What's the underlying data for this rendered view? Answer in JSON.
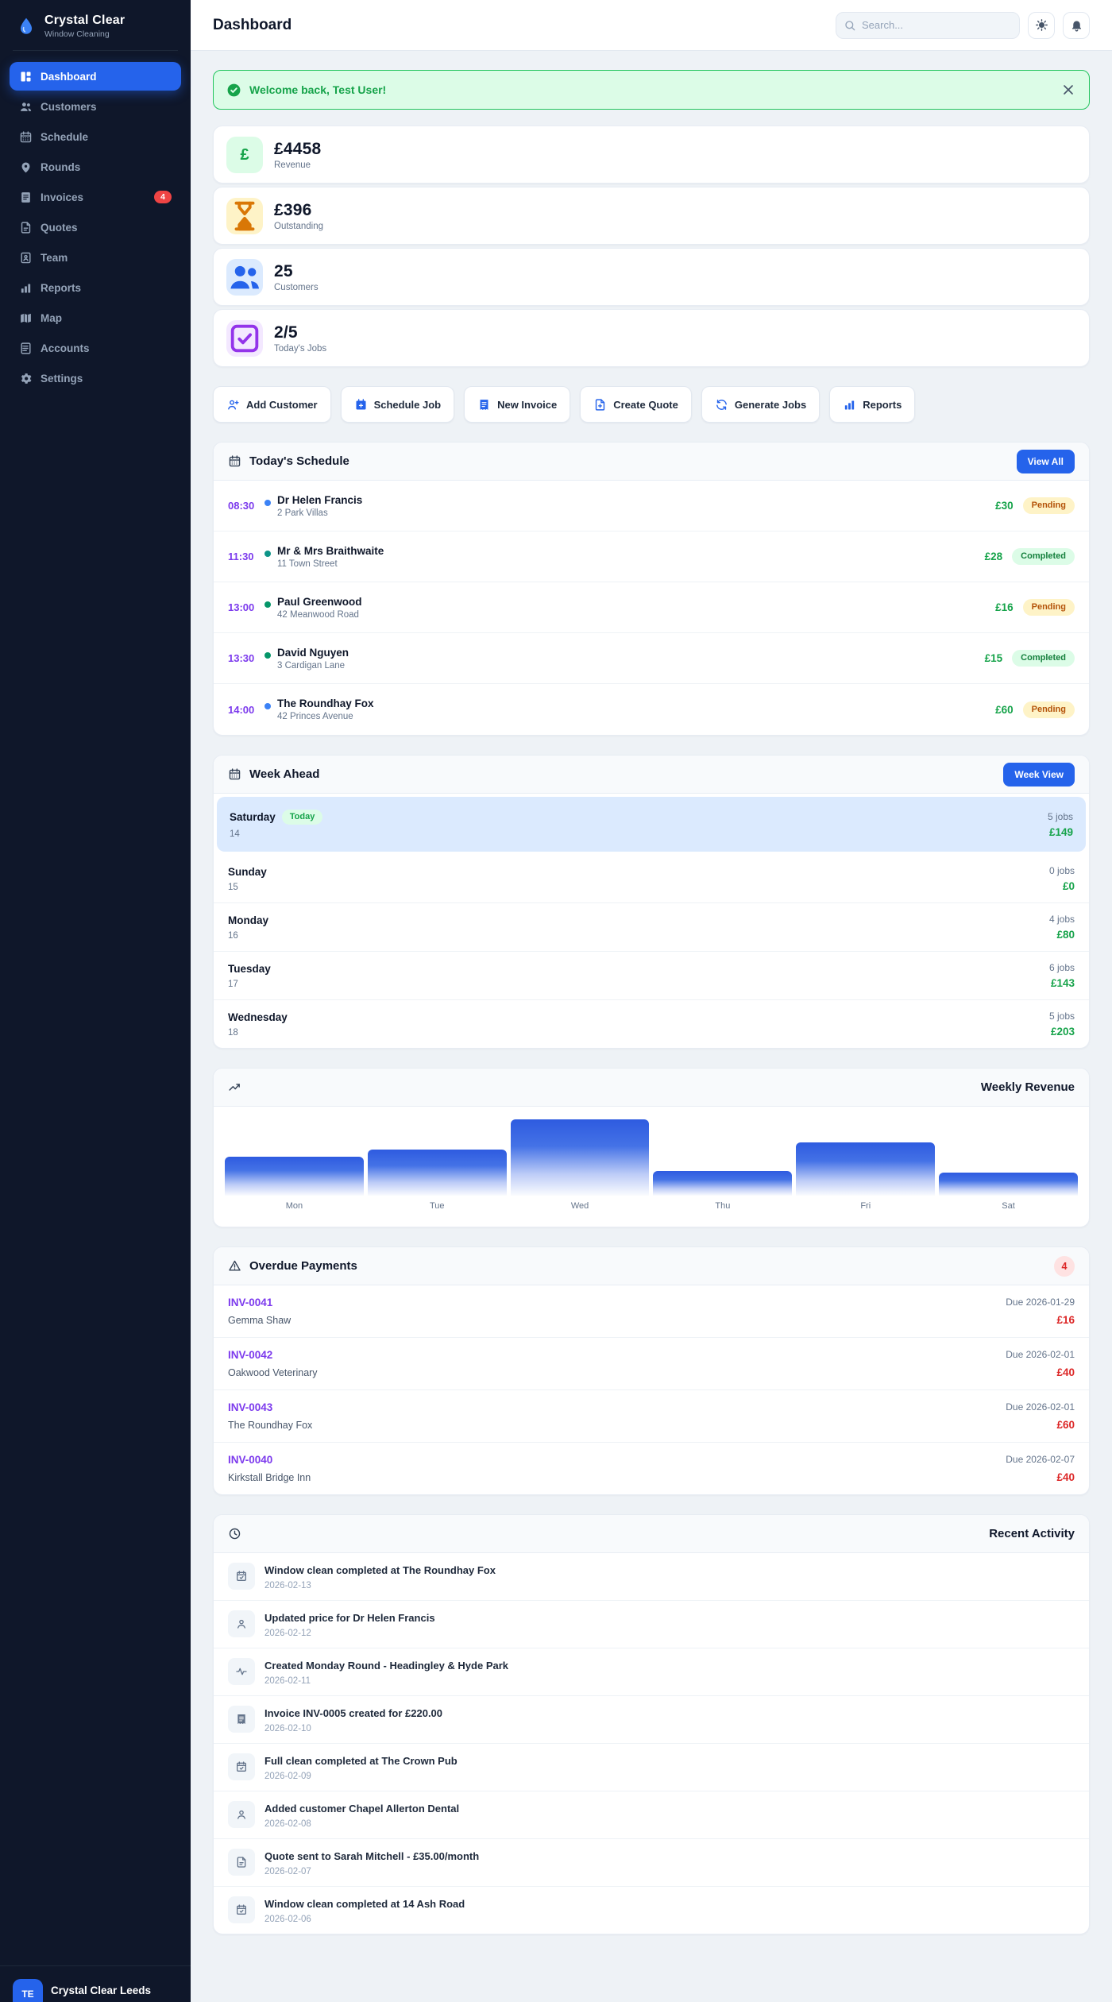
{
  "app": {
    "name": "Crystal Clear",
    "subtitle": "Window Cleaning",
    "footer_org": "Crystal Clear Leeds",
    "footer_avatar_initials": "TE"
  },
  "colors": {
    "accent_blue": "#2563eb",
    "sidebar_bg": "#0f172a",
    "page_bg": "#eef2f6",
    "success_green": "#16a34a",
    "warning_amber": "#d97706",
    "purple": "#7c3aed",
    "danger_red": "#dc2626"
  },
  "header": {
    "title": "Dashboard",
    "search_placeholder": "Search..."
  },
  "alert": {
    "message": "Welcome back, Test User!"
  },
  "sidebar": {
    "items": [
      {
        "label": "Dashboard",
        "icon": "dashboard",
        "state": "active"
      },
      {
        "label": "Customers",
        "icon": "users"
      },
      {
        "label": "Schedule",
        "icon": "calendar"
      },
      {
        "label": "Rounds",
        "icon": "pin"
      },
      {
        "label": "Invoices",
        "icon": "invoice",
        "badge": "4"
      },
      {
        "label": "Quotes",
        "icon": "quote"
      },
      {
        "label": "Team",
        "icon": "id-card"
      },
      {
        "label": "Reports",
        "icon": "bar-chart"
      },
      {
        "label": "Map",
        "icon": "map"
      },
      {
        "label": "Accounts",
        "icon": "accounts"
      },
      {
        "label": "Settings",
        "icon": "gear"
      }
    ]
  },
  "stats": [
    {
      "value": "£4458",
      "label": "Revenue",
      "icon": "pound",
      "theme": "green"
    },
    {
      "value": "£396",
      "label": "Outstanding",
      "icon": "hourglass",
      "theme": "amber"
    },
    {
      "value": "25",
      "label": "Customers",
      "icon": "users",
      "theme": "blue"
    },
    {
      "value": "2/5",
      "label": "Today's Jobs",
      "icon": "check-square",
      "theme": "purple"
    }
  ],
  "quick_actions": [
    {
      "label": "Add Customer",
      "icon": "user-plus"
    },
    {
      "label": "Schedule Job",
      "icon": "calendar-plus"
    },
    {
      "label": "New Invoice",
      "icon": "receipt"
    },
    {
      "label": "Create Quote",
      "icon": "file-plus"
    },
    {
      "label": "Generate Jobs",
      "icon": "refresh"
    },
    {
      "label": "Reports",
      "icon": "bar-chart"
    }
  ],
  "todays_schedule": {
    "title": "Today's Schedule",
    "view_all_label": "View All",
    "jobs": [
      {
        "time": "08:30",
        "dot": "blue",
        "name": "Dr Helen Francis",
        "address": "2 Park Villas",
        "price": "£30",
        "status": "Pending"
      },
      {
        "time": "11:30",
        "dot": "teal",
        "name": "Mr & Mrs Braithwaite",
        "address": "11 Town Street",
        "price": "£28",
        "status": "Completed"
      },
      {
        "time": "13:00",
        "dot": "green",
        "name": "Paul Greenwood",
        "address": "42 Meanwood Road",
        "price": "£16",
        "status": "Pending"
      },
      {
        "time": "13:30",
        "dot": "green",
        "name": "David Nguyen",
        "address": "3 Cardigan Lane",
        "price": "£15",
        "status": "Completed"
      },
      {
        "time": "14:00",
        "dot": "blue",
        "name": "The Roundhay Fox",
        "address": "42 Princes Avenue",
        "price": "£60",
        "status": "Pending"
      }
    ]
  },
  "week_ahead": {
    "title": "Week Ahead",
    "button_label": "Week View",
    "days": [
      {
        "day": "Saturday",
        "badge": "Today",
        "date": "14",
        "jobs": "5 jobs",
        "amount": "£149",
        "state": "highlight"
      },
      {
        "day": "Sunday",
        "date": "15",
        "jobs": "0 jobs",
        "amount": "£0"
      },
      {
        "day": "Monday",
        "date": "16",
        "jobs": "4 jobs",
        "amount": "£80"
      },
      {
        "day": "Tuesday",
        "date": "17",
        "jobs": "6 jobs",
        "amount": "£143"
      },
      {
        "day": "Wednesday",
        "date": "18",
        "jobs": "5 jobs",
        "amount": "£203"
      }
    ]
  },
  "chart_data": {
    "type": "bar",
    "title": "Weekly Revenue",
    "categories": [
      "Mon",
      "Tue",
      "Wed",
      "Thu",
      "Fri",
      "Sat"
    ],
    "values_pct": [
      51,
      60,
      100,
      32,
      70,
      30
    ],
    "ylabel": "",
    "xlabel": "",
    "grid": false,
    "legend": false,
    "bar_color": "#2e5be0"
  },
  "overdue": {
    "title": "Overdue Payments",
    "count": "4",
    "invoices": [
      {
        "id": "INV-0041",
        "customer": "Gemma Shaw",
        "due": "Due 2026-01-29",
        "amount": "£16"
      },
      {
        "id": "INV-0042",
        "customer": "Oakwood Veterinary",
        "due": "Due 2026-02-01",
        "amount": "£40"
      },
      {
        "id": "INV-0043",
        "customer": "The Roundhay Fox",
        "due": "Due 2026-02-01",
        "amount": "£60"
      },
      {
        "id": "INV-0040",
        "customer": "Kirkstall Bridge Inn",
        "due": "Due 2026-02-07",
        "amount": "£40"
      }
    ]
  },
  "recent_activity": {
    "title": "Recent Activity",
    "items": [
      {
        "icon": "calendar-check",
        "text": "Window clean completed at The Roundhay Fox",
        "date": "2026-02-13"
      },
      {
        "icon": "user",
        "text": "Updated price for Dr Helen Francis",
        "date": "2026-02-12"
      },
      {
        "icon": "pulse",
        "text": "Created Monday Round - Headingley & Hyde Park",
        "date": "2026-02-11"
      },
      {
        "icon": "receipt",
        "text": "Invoice INV-0005 created for £220.00",
        "date": "2026-02-10"
      },
      {
        "icon": "calendar-check",
        "text": "Full clean completed at The Crown Pub",
        "date": "2026-02-09"
      },
      {
        "icon": "user",
        "text": "Added customer Chapel Allerton Dental",
        "date": "2026-02-08"
      },
      {
        "icon": "quote",
        "text": "Quote sent to Sarah Mitchell - £35.00/month",
        "date": "2026-02-07"
      },
      {
        "icon": "calendar-check",
        "text": "Window clean completed at 14 Ash Road",
        "date": "2026-02-06"
      }
    ]
  }
}
